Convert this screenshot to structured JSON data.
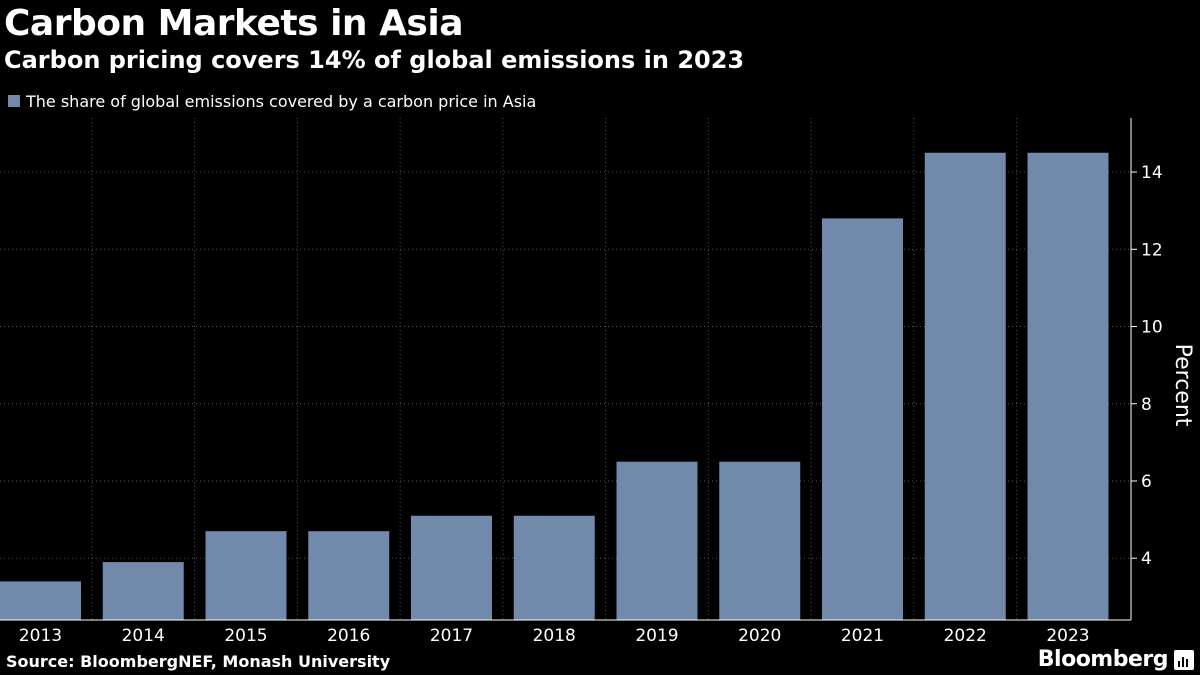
{
  "header": {
    "title": "Carbon Markets in Asia",
    "subtitle": "Carbon pricing covers 14% of global emissions in 2023"
  },
  "legend": {
    "label": "The share of global emissions covered by a carbon price in Asia",
    "color": "#7189ab"
  },
  "footer": {
    "source": "Source: BloombergNEF, Monash University",
    "brand": "Bloomberg"
  },
  "colors": {
    "bar": "#7189ab",
    "background": "#000000",
    "grid": "#555555",
    "text": "#ffffff"
  },
  "chart_data": {
    "type": "bar",
    "title": "Carbon Markets in Asia",
    "subtitle": "Carbon pricing covers 14% of global emissions in 2023",
    "categories": [
      "2013",
      "2014",
      "2015",
      "2016",
      "2017",
      "2018",
      "2019",
      "2020",
      "2021",
      "2022",
      "2023"
    ],
    "series": [
      {
        "name": "The share of global emissions covered by a carbon price in Asia",
        "values": [
          3.4,
          3.9,
          4.7,
          4.7,
          5.1,
          5.1,
          6.5,
          6.5,
          12.8,
          14.5,
          14.5
        ]
      }
    ],
    "xlabel": "",
    "ylabel": "Percent",
    "ylim": [
      2.4,
      15.4
    ],
    "yticks": [
      4,
      6,
      8,
      10,
      12,
      14
    ],
    "y_axis_side": "right",
    "grid": "vertical dotted",
    "legend_position": "top-left"
  }
}
